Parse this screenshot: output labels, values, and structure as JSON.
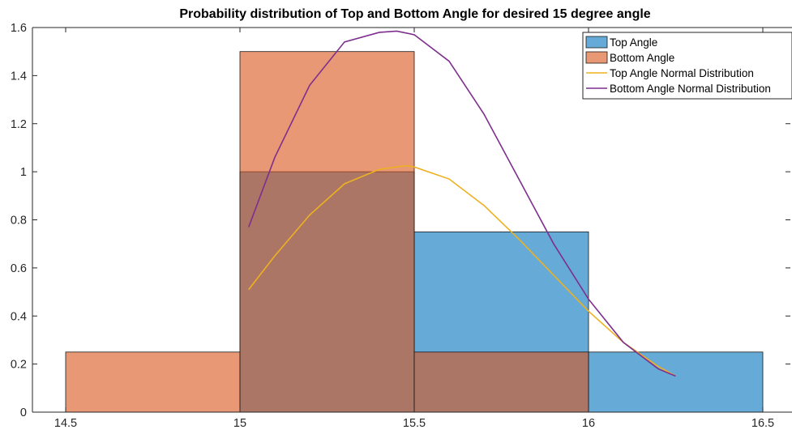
{
  "chart_data": {
    "type": "bar",
    "title": "Probability distribution of Top and Bottom Angle for desired 15 degree angle",
    "xlabel": "",
    "ylabel": "",
    "xlim": [
      14.5,
      16.5
    ],
    "ylim": [
      0,
      1.6
    ],
    "xticks": [
      "14.5",
      "15",
      "15.5",
      "16",
      "16.5"
    ],
    "yticks": [
      "0",
      "0.2",
      "0.4",
      "0.6",
      "0.8",
      "1",
      "1.2",
      "1.4",
      "1.6"
    ],
    "grid": false,
    "legend_position": "top-right",
    "histograms": [
      {
        "name": "Top Angle",
        "color": "#0072BD",
        "bins": [
          {
            "x0": 15.0,
            "x1": 15.5,
            "value": 1.0
          },
          {
            "x0": 15.5,
            "x1": 16.0,
            "value": 0.75
          },
          {
            "x0": 16.0,
            "x1": 16.5,
            "value": 0.25
          }
        ]
      },
      {
        "name": "Bottom Angle",
        "color": "#D95319",
        "bins": [
          {
            "x0": 14.5,
            "x1": 15.0,
            "value": 0.25
          },
          {
            "x0": 15.0,
            "x1": 15.5,
            "value": 1.5
          },
          {
            "x0": 15.5,
            "x1": 16.0,
            "value": 0.25
          }
        ]
      }
    ],
    "series": [
      {
        "name": "Top Angle Normal Distribution",
        "color": "#EDB120",
        "x": [
          15.025,
          15.1,
          15.2,
          15.3,
          15.4,
          15.475,
          15.5,
          15.6,
          15.7,
          15.8,
          15.9,
          16.0,
          16.1,
          16.2,
          16.25
        ],
        "y": [
          0.51,
          0.65,
          0.82,
          0.95,
          1.01,
          1.025,
          1.02,
          0.97,
          0.86,
          0.72,
          0.57,
          0.42,
          0.29,
          0.19,
          0.15
        ]
      },
      {
        "name": "Bottom Angle Normal Distribution",
        "color": "#7E2F8E",
        "x": [
          15.025,
          15.1,
          15.2,
          15.3,
          15.4,
          15.45,
          15.5,
          15.6,
          15.7,
          15.8,
          15.9,
          16.0,
          16.1,
          16.2,
          16.25
        ],
        "y": [
          0.77,
          1.06,
          1.36,
          1.54,
          1.58,
          1.585,
          1.57,
          1.46,
          1.24,
          0.97,
          0.7,
          0.47,
          0.29,
          0.18,
          0.15
        ]
      }
    ]
  }
}
